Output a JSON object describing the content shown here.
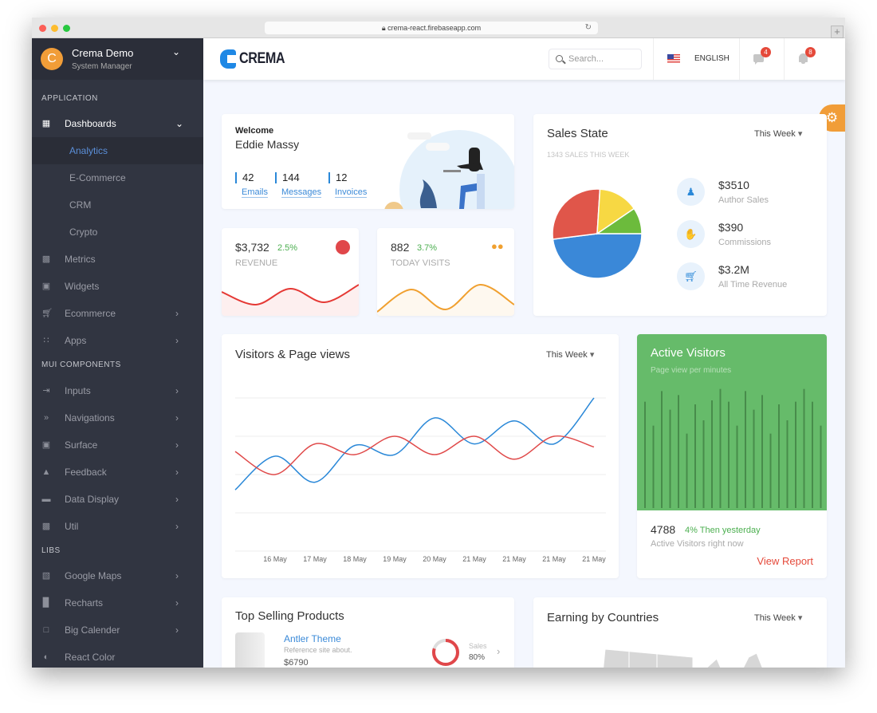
{
  "browser": {
    "url": "crema-react.firebaseapp.com",
    "tab_add": "+"
  },
  "sidebar": {
    "profile": {
      "initial": "C",
      "name": "Crema Demo",
      "role": "System Manager"
    },
    "sections": [
      "APPLICATION",
      "MUI COMPONENTS",
      "LIBS"
    ],
    "items": [
      {
        "label": "Dashboards",
        "icon": "dashboard-icon"
      },
      {
        "label": "Analytics"
      },
      {
        "label": "E-Commerce"
      },
      {
        "label": "CRM"
      },
      {
        "label": "Crypto"
      },
      {
        "label": "Metrics",
        "icon": "metrics-icon"
      },
      {
        "label": "Widgets",
        "icon": "widgets-icon"
      },
      {
        "label": "Ecommerce",
        "icon": "cart-icon"
      },
      {
        "label": "Apps",
        "icon": "apps-icon"
      },
      {
        "label": "Inputs",
        "icon": "input-icon"
      },
      {
        "label": "Navigations",
        "icon": "double-chevron-icon"
      },
      {
        "label": "Surface",
        "icon": "surface-icon"
      },
      {
        "label": "Feedback",
        "icon": "bell-icon"
      },
      {
        "label": "Data Display",
        "icon": "laptop-icon"
      },
      {
        "label": "Util",
        "icon": "wallet-icon"
      },
      {
        "label": "Google Maps",
        "icon": "map-icon"
      },
      {
        "label": "Recharts",
        "icon": "bar-chart-icon"
      },
      {
        "label": "Big Calender",
        "icon": "calendar-icon"
      },
      {
        "label": "React Color",
        "icon": "color-drop-icon"
      }
    ]
  },
  "header": {
    "logo_text": "CREMA",
    "search_placeholder": "Search...",
    "language": "ENGLISH",
    "messages_count": "4",
    "notifications_count": "8"
  },
  "welcome": {
    "greeting": "Welcome",
    "name": "Eddie Massy",
    "stats": [
      {
        "value": "42",
        "label": "Emails"
      },
      {
        "value": "144",
        "label": "Messages"
      },
      {
        "value": "12",
        "label": "Invoices"
      }
    ]
  },
  "revenue": {
    "value": "$3,732",
    "change": "2.5%",
    "label": "REVENUE",
    "color": "#e53935",
    "spark": [
      30,
      14,
      34,
      17,
      39
    ]
  },
  "visits": {
    "value": "882",
    "change": "3.7%",
    "label": "TODAY VISITS",
    "color": "#f0a030",
    "spark": [
      5,
      33,
      8,
      39,
      14
    ]
  },
  "sales_state": {
    "title": "Sales State",
    "period": "This Week",
    "subtitle": "1343 SALES THIS WEEK",
    "stats": [
      {
        "value": "$3510",
        "label": "Author Sales",
        "icon": "person-icon"
      },
      {
        "value": "$390",
        "label": "Commissions",
        "icon": "hand-coin-icon"
      },
      {
        "value": "$3.2M",
        "label": "All Time Revenue",
        "icon": "basket-icon"
      }
    ]
  },
  "chart_data": [
    {
      "type": "pie",
      "values": [
        48,
        28,
        14.5,
        9.5
      ],
      "colors": [
        "#3a88d8",
        "#e0564a",
        "#f7d843",
        "#6cbb3c"
      ]
    },
    {
      "type": "line",
      "title": "Visitors & Page views",
      "period": "This Week",
      "categories": [
        "",
        "16 May",
        "17 May",
        "18 May",
        "19 May",
        "20 May",
        "21 May",
        "21 May",
        "21 May",
        "21 May"
      ],
      "ylim": [
        0,
        100
      ],
      "grid": true,
      "series": [
        {
          "color": "#2a88d8",
          "values": [
            40,
            62,
            45,
            69,
            63,
            87,
            70,
            85,
            70,
            100
          ]
        },
        {
          "color": "#e04a4a",
          "values": [
            65,
            50,
            70,
            63,
            75,
            63,
            75,
            60,
            75,
            68
          ]
        }
      ]
    },
    {
      "type": "bar",
      "title": "Active Visitors",
      "subtitle": "Page view per minutes",
      "values": [
        400,
        310,
        440,
        370,
        425,
        280,
        390,
        330,
        405,
        448,
        400,
        310,
        440,
        370,
        425,
        280,
        390,
        330,
        400,
        448,
        400,
        310
      ],
      "ylim": [
        0,
        450
      ]
    }
  ],
  "active_visitors": {
    "count": "4788",
    "change": "4% Then yesterday",
    "caption": "Active Visitors right now",
    "link": "View Report",
    "color": "#66bb6a"
  },
  "top_selling": {
    "title": "Top Selling Products",
    "product": {
      "name": "Antler Theme",
      "desc": "Reference site about.",
      "price": "$6790",
      "sales_label": "Sales",
      "sales_pct": "80%",
      "sales_value": 80
    }
  },
  "earning": {
    "title": "Earning by Countries",
    "period": "This Week"
  }
}
